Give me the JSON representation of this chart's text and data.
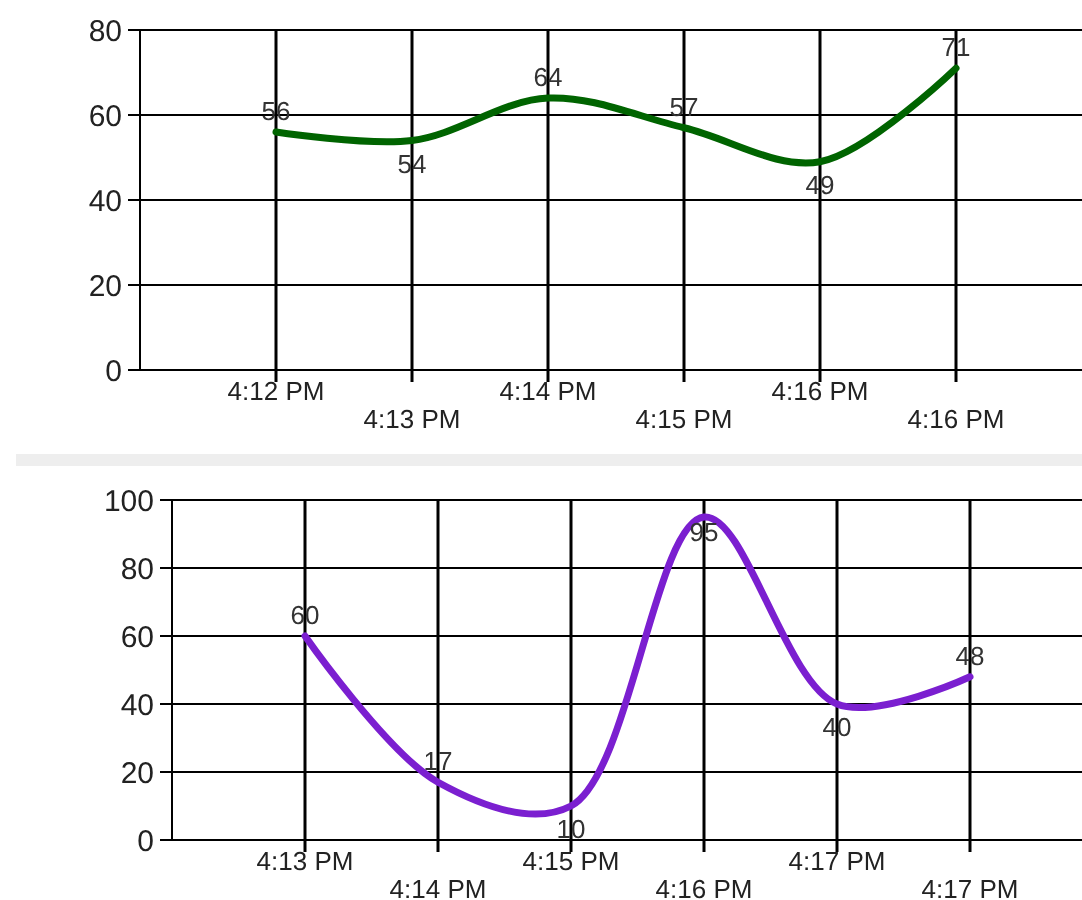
{
  "chart_data": [
    {
      "type": "line",
      "categories": [
        "4:12 PM",
        "4:13 PM",
        "4:14 PM",
        "4:15 PM",
        "4:16 PM",
        "4:16 PM"
      ],
      "series": [
        {
          "color": "#006400",
          "values": [
            56,
            54,
            64,
            57,
            49,
            71
          ]
        }
      ],
      "ylim": [
        0,
        80
      ],
      "yticks": [
        0,
        20,
        40,
        60,
        80
      ],
      "grid": true,
      "data_labels": true
    },
    {
      "type": "line",
      "categories": [
        "4:13 PM",
        "4:14 PM",
        "4:15 PM",
        "4:16 PM",
        "4:17 PM",
        "4:17 PM"
      ],
      "series": [
        {
          "color": "#7b1fd0",
          "values": [
            60,
            17,
            10,
            95,
            40,
            48
          ]
        }
      ],
      "ylim": [
        0,
        100
      ],
      "yticks": [
        0,
        20,
        40,
        60,
        80,
        100
      ],
      "grid": true,
      "data_labels": true
    }
  ]
}
